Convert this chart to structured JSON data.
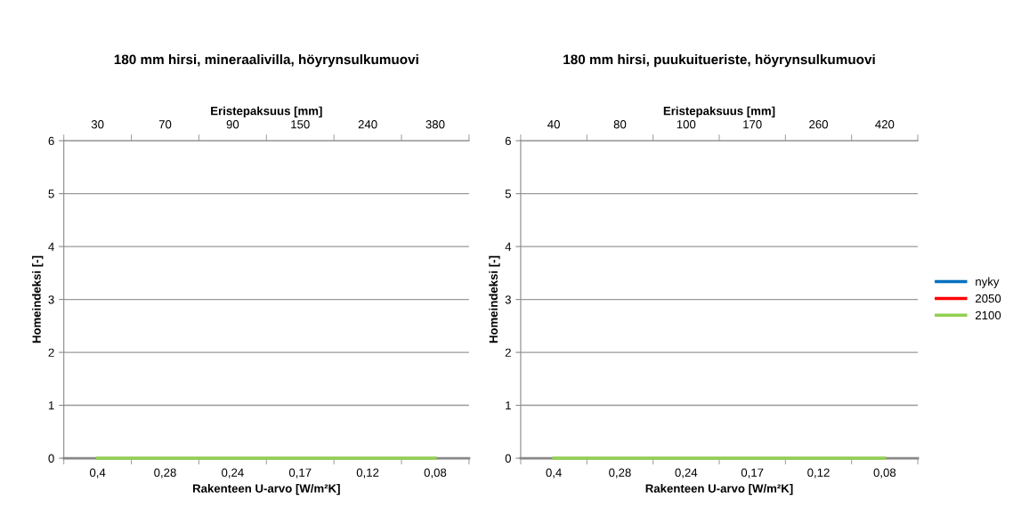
{
  "chart_data": [
    {
      "type": "line",
      "title": "180 mm hirsi, mineraalivilla, höyrynsulkumuovi",
      "xlabel": "Rakenteen U-arvo [W/m²K]",
      "ylabel": "Homeindeksi [-]",
      "x2label": "Eristepaksuus [mm]",
      "categories": [
        "0,4",
        "0,28",
        "0,24",
        "0,17",
        "0,12",
        "0,08"
      ],
      "annotations": [
        "30",
        "70",
        "90",
        "150",
        "240",
        "380"
      ],
      "series": [
        {
          "color": "#0070c0",
          "values": [
            null,
            null,
            null,
            null,
            null,
            null
          ]
        },
        {
          "color": "#ff0000",
          "values": [
            null,
            null,
            null,
            null,
            null,
            null
          ]
        },
        {
          "color": "#92d050",
          "values": [
            0,
            0,
            0,
            0,
            0,
            0
          ]
        }
      ],
      "ylim": [
        0,
        6
      ],
      "yticks": [
        0,
        1,
        2,
        3,
        4,
        5,
        6
      ],
      "grid": "y"
    },
    {
      "type": "line",
      "title": "180 mm hirsi, puukuitueriste, höyrynsulkumuovi",
      "xlabel": "Rakenteen U-arvo [W/m²K]",
      "ylabel": "Homeindeksi [-]",
      "x2label": "Eristepaksuus [mm]",
      "categories": [
        "0,4",
        "0,28",
        "0,24",
        "0,17",
        "0,12",
        "0,08"
      ],
      "annotations": [
        "40",
        "80",
        "100",
        "170",
        "260",
        "420"
      ],
      "series": [
        {
          "name": "nyky",
          "color": "#0070c0",
          "values": [
            null,
            null,
            null,
            null,
            null,
            null
          ]
        },
        {
          "name": "2050",
          "color": "#ff0000",
          "values": [
            null,
            null,
            null,
            null,
            null,
            null
          ]
        },
        {
          "name": "2100",
          "color": "#92d050",
          "values": [
            0,
            0,
            0,
            0,
            0,
            0
          ]
        }
      ],
      "ylim": [
        0,
        6
      ],
      "yticks": [
        0,
        1,
        2,
        3,
        4,
        5,
        6
      ],
      "grid": "y",
      "legend": "right"
    }
  ]
}
